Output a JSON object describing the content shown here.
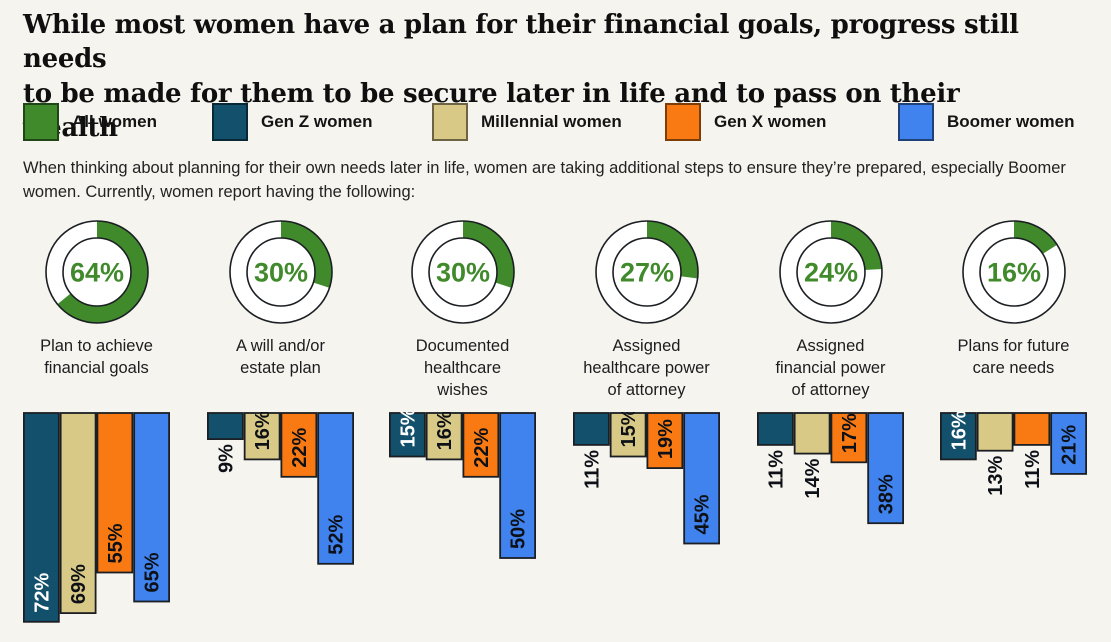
{
  "title": "While most women have a plan for their financial goals, progress still needs\nto be made for them to be secure later in life and to pass on their wealth",
  "legend": {
    "items": [
      {
        "label": "All women",
        "color": "#418a2c"
      },
      {
        "label": "Gen Z women",
        "color": "#13506b"
      },
      {
        "label": "Millennial women",
        "color": "#d8c987"
      },
      {
        "label": "Gen X women",
        "color": "#f97a12"
      },
      {
        "label": "Boomer women",
        "color": "#4083ee"
      }
    ]
  },
  "intro": "When thinking about planning for their own needs later in life, women are taking additional steps to ensure they’re prepared, especially Boomer women. Currently, women report having the following:",
  "chart_data": {
    "type": "donut+bar",
    "value_unit": "%",
    "donut_series": "All women",
    "donut_color": "#418a2c",
    "bar_series": [
      "Gen Z women",
      "Millennial women",
      "Gen X women",
      "Boomer women"
    ],
    "bar_colors": [
      "#13506b",
      "#d8c987",
      "#f97a12",
      "#4083ee"
    ],
    "outline_color": "#1b1f23",
    "ylim": [
      0,
      100
    ],
    "groups": [
      {
        "caption": "Plan to achieve\nfinancial goals",
        "all_women_pct": 64,
        "values": [
          72,
          69,
          55,
          65
        ]
      },
      {
        "caption": "A will and/or\nestate plan",
        "all_women_pct": 30,
        "values": [
          9,
          16,
          22,
          52
        ]
      },
      {
        "caption": "Documented\nhealthcare\nwishes",
        "all_women_pct": 30,
        "values": [
          15,
          16,
          22,
          50
        ]
      },
      {
        "caption": "Assigned\nhealthcare power\nof attorney",
        "all_women_pct": 27,
        "values": [
          11,
          15,
          19,
          45
        ]
      },
      {
        "caption": "Assigned\nfinancial power\nof attorney",
        "all_women_pct": 24,
        "values": [
          11,
          14,
          17,
          38
        ]
      },
      {
        "caption": "Plans for future\ncare needs",
        "all_women_pct": 16,
        "values": [
          16,
          13,
          11,
          21
        ]
      }
    ]
  }
}
